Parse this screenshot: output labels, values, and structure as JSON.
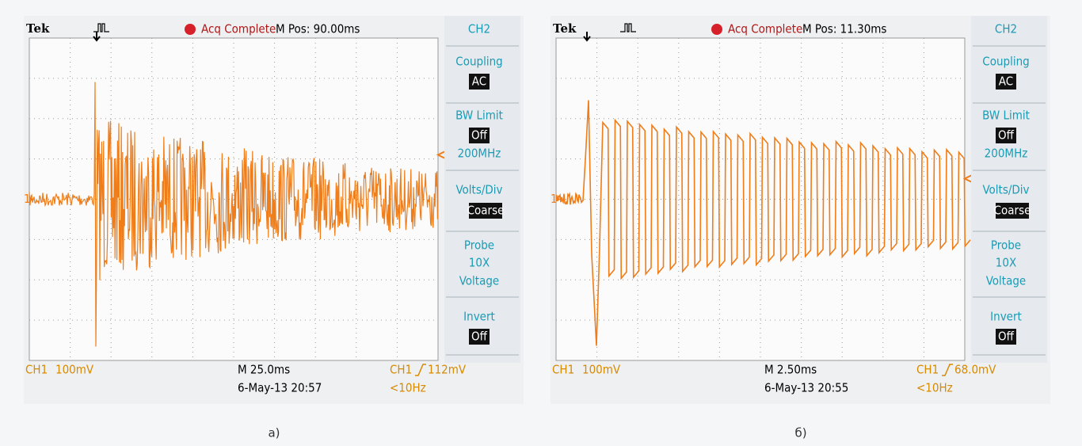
{
  "panels": [
    {
      "header": {
        "brand": "Tek",
        "status": "Acq Complete",
        "position": "M Pos: 90.00ms"
      },
      "channel_marker": "1",
      "menu": [
        "CH2",
        "Coupling",
        "AC",
        "BW Limit",
        "Off",
        "200MHz",
        "Volts/Div",
        "Coarse",
        "Probe",
        "10X",
        "Voltage",
        "Invert",
        "Off"
      ],
      "footer": {
        "channel": "CH1",
        "scale": "100mV",
        "timebase": "M 25.0ms",
        "date": "6-May-13 20:57",
        "trigger_channel": "CH1",
        "trigger_level": "112mV",
        "frequency": "<10Hz"
      },
      "caption": "а)"
    },
    {
      "header": {
        "brand": "Tek",
        "status": "Acq Complete",
        "position": "M Pos: 11.30ms"
      },
      "channel_marker": "1",
      "menu": [
        "CH2",
        "Coupling",
        "AC",
        "BW Limit",
        "Off",
        "200MHz",
        "Volts/Div",
        "Coarse",
        "Probe",
        "10X",
        "Voltage",
        "Invert",
        "Off"
      ],
      "footer": {
        "channel": "CH1",
        "scale": "100mV",
        "timebase": "M 2.50ms",
        "date": "6-May-13 20:55",
        "trigger_channel": "CH1",
        "trigger_level": "68.0mV",
        "frequency": "<10Hz"
      },
      "caption": "б)"
    }
  ]
}
